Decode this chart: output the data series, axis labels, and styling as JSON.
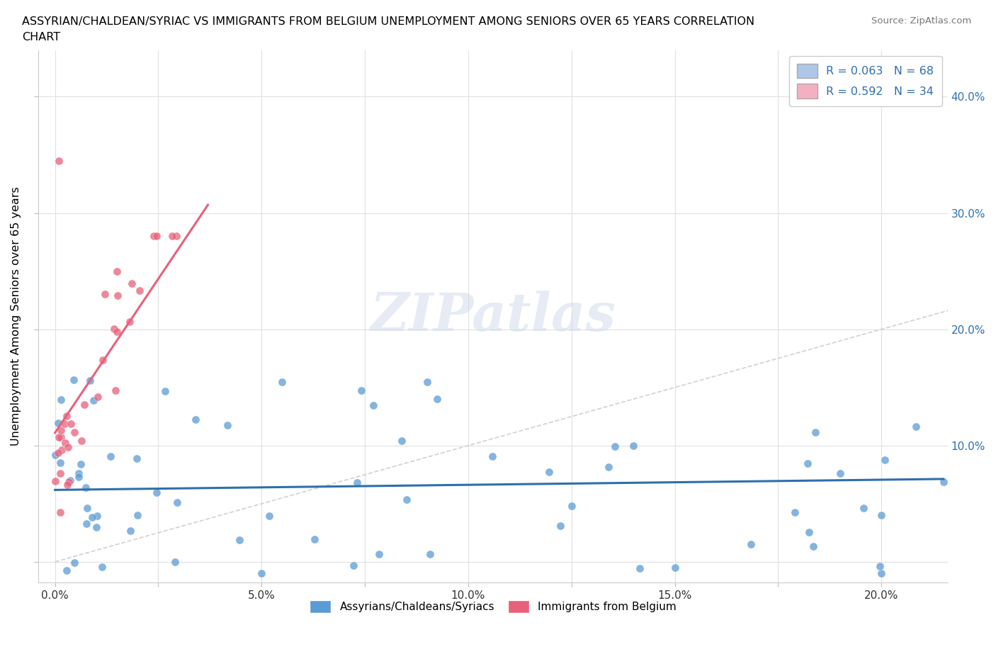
{
  "title_line1": "ASSYRIAN/CHALDEAN/SYRIAC VS IMMIGRANTS FROM BELGIUM UNEMPLOYMENT AMONG SENIORS OVER 65 YEARS CORRELATION",
  "title_line2": "CHART",
  "source_text": "Source: ZipAtlas.com",
  "watermark": "ZIPatlas",
  "xlim": [
    -0.004,
    0.216
  ],
  "ylim": [
    -0.018,
    0.44
  ],
  "xticks": [
    0.0,
    0.025,
    0.05,
    0.075,
    0.1,
    0.125,
    0.15,
    0.175,
    0.2
  ],
  "xticklabels": [
    "0.0%",
    "",
    "5.0%",
    "",
    "10.0%",
    "",
    "15.0%",
    "",
    "20.0%"
  ],
  "yticks": [
    0.0,
    0.1,
    0.2,
    0.3,
    0.4
  ],
  "yticklabels_right": [
    "",
    "10.0%",
    "20.0%",
    "30.0%",
    "40.0%"
  ],
  "blue_color": "#5b9bd5",
  "pink_color": "#e8607a",
  "blue_line_color": "#2e6fad",
  "pink_line_color": "#e8607a",
  "ref_line_color": "#cccccc",
  "legend_box_blue": "#aec6e8",
  "legend_box_pink": "#f4b0c0",
  "legend_text_color": "#2e6fad",
  "legend1_label": "R = 0.063   N = 68",
  "legend2_label": "R = 0.592   N = 34",
  "bottom_legend1": "Assyrians/Chaldeans/Syriacs",
  "bottom_legend2": "Immigrants from Belgium",
  "ylabel": "Unemployment Among Seniors over 65 years",
  "blue_R": 0.063,
  "pink_R": 0.592
}
